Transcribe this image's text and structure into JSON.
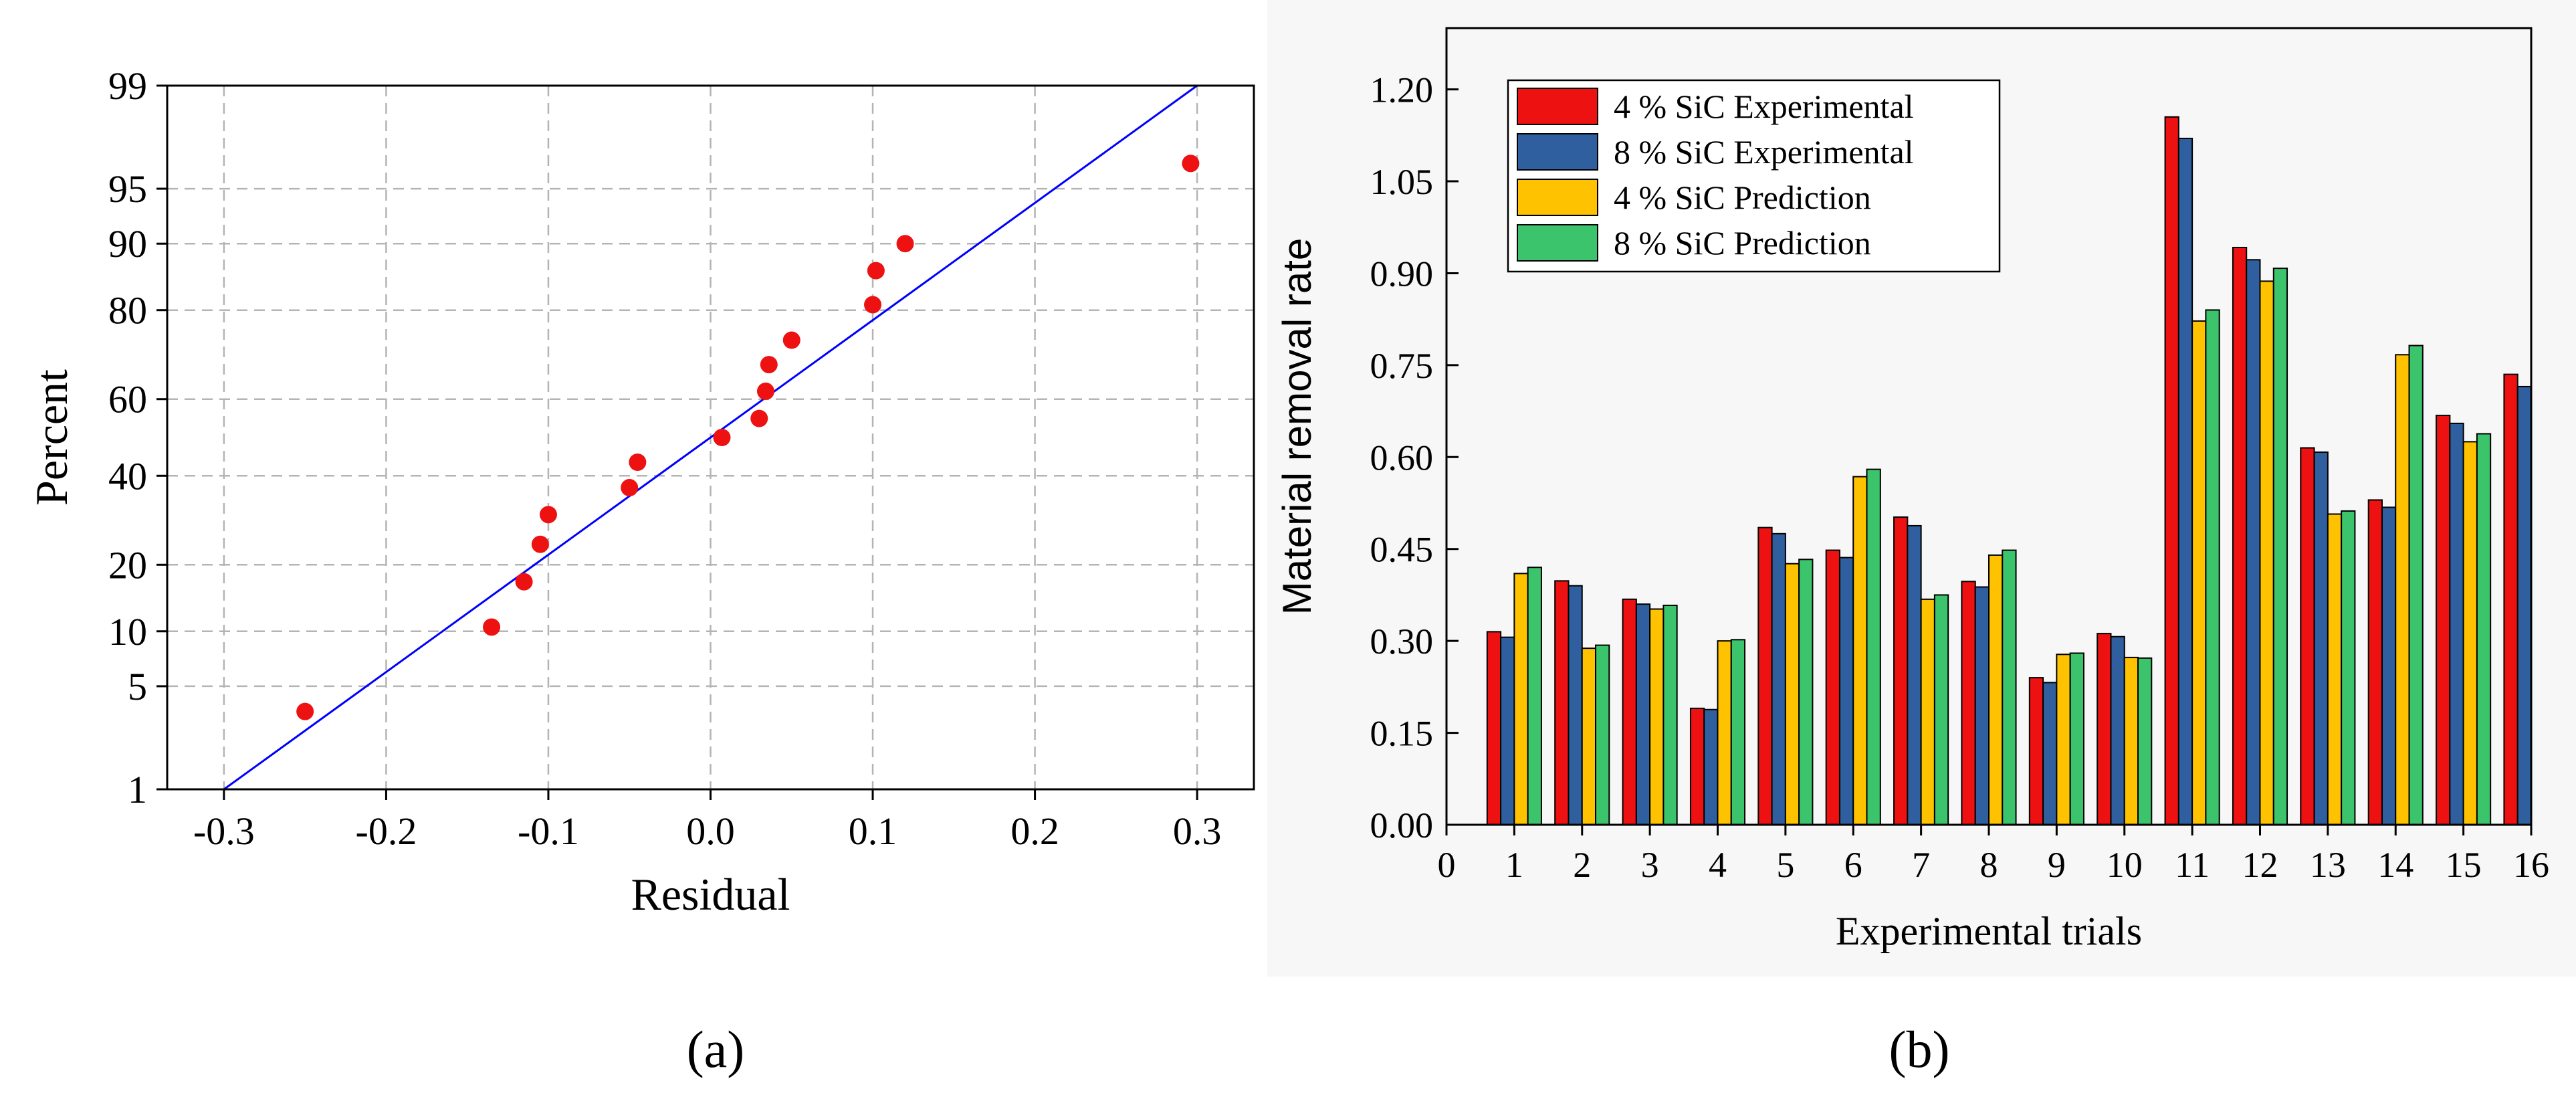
{
  "chart_data": [
    {
      "panel_label": "(a)",
      "type": "scatter",
      "title": "",
      "xlabel": "Residual",
      "ylabel": "Percent",
      "xlim": [
        -0.335,
        0.335
      ],
      "x_ticks": [
        -0.3,
        -0.2,
        -0.1,
        0.0,
        0.1,
        0.2,
        0.3
      ],
      "x_tick_labels": [
        "-0.3",
        "-0.2",
        "-0.1",
        "0.0",
        "0.1",
        "0.2",
        "0.3"
      ],
      "y_scale": "normal-probability",
      "ylim": [
        1,
        99
      ],
      "y_ticks": [
        1,
        5,
        10,
        20,
        40,
        60,
        80,
        90,
        95,
        99
      ],
      "y_tick_labels": [
        "1",
        "5",
        "10",
        "20",
        "40",
        "60",
        "80",
        "90",
        "95",
        "99"
      ],
      "grid": true,
      "fit_line": {
        "x": [
          -0.3,
          0.3
        ],
        "y": [
          1,
          99
        ],
        "color": "#0000ff"
      },
      "point_color": "#ee1111",
      "points": [
        {
          "x": -0.25,
          "y": 3.5
        },
        {
          "x": -0.135,
          "y": 10.5
        },
        {
          "x": -0.115,
          "y": 17
        },
        {
          "x": -0.105,
          "y": 24
        },
        {
          "x": -0.1,
          "y": 30.5
        },
        {
          "x": -0.05,
          "y": 37
        },
        {
          "x": -0.045,
          "y": 43.5
        },
        {
          "x": 0.007,
          "y": 50
        },
        {
          "x": 0.03,
          "y": 55
        },
        {
          "x": 0.034,
          "y": 62
        },
        {
          "x": 0.036,
          "y": 68.5
        },
        {
          "x": 0.05,
          "y": 74
        },
        {
          "x": 0.1,
          "y": 81
        },
        {
          "x": 0.102,
          "y": 86.5
        },
        {
          "x": 0.12,
          "y": 90
        },
        {
          "x": 0.296,
          "y": 96.5
        }
      ]
    },
    {
      "panel_label": "(b)",
      "type": "bar",
      "title": "",
      "xlabel": "Experimental trials",
      "ylabel": "Material removal rate",
      "ylim": [
        0,
        1.3
      ],
      "y_ticks": [
        0,
        0.15,
        0.3,
        0.45,
        0.6,
        0.75,
        0.9,
        1.05,
        1.2
      ],
      "y_tick_labels": [
        "0.00",
        "0.15",
        "0.30",
        "0.45",
        "0.60",
        "0.75",
        "0.90",
        "1.05",
        "1.20"
      ],
      "x_ticks": [
        0,
        1,
        2,
        3,
        4,
        5,
        6,
        7,
        8,
        9,
        10,
        11,
        12,
        13,
        14,
        15,
        16
      ],
      "x_tick_labels": [
        "0",
        "1",
        "2",
        "3",
        "4",
        "5",
        "6",
        "7",
        "8",
        "9",
        "10",
        "11",
        "12",
        "13",
        "14",
        "15",
        "16"
      ],
      "categories": [
        "1",
        "2",
        "3",
        "4",
        "5",
        "6",
        "7",
        "8",
        "9",
        "10",
        "11",
        "12",
        "13",
        "14",
        "15",
        "16"
      ],
      "legend_position": "top-left",
      "series": [
        {
          "name": "4 % SiC Experimental",
          "color": "#ee1111",
          "values": [
            0.315,
            0.398,
            0.368,
            0.19,
            0.485,
            0.448,
            0.502,
            0.397,
            0.24,
            0.312,
            1.155,
            0.942,
            0.615,
            0.53,
            0.668,
            0.735
          ]
        },
        {
          "name": "8 % SiC Experimental",
          "color": "#2f5f9e",
          "values": [
            0.306,
            0.39,
            0.36,
            0.188,
            0.475,
            0.436,
            0.488,
            0.388,
            0.232,
            0.307,
            1.12,
            0.922,
            0.608,
            0.518,
            0.655,
            0.715
          ]
        },
        {
          "name": "4 % SiC Prediction",
          "color": "#ffc200",
          "values": [
            0.41,
            0.288,
            0.352,
            0.3,
            0.426,
            0.568,
            0.368,
            0.44,
            0.278,
            0.273,
            0.822,
            0.887,
            0.507,
            0.767,
            0.625,
            null
          ]
        },
        {
          "name": "8 % SiC Prediction",
          "color": "#3cc46c",
          "values": [
            0.42,
            0.293,
            0.358,
            0.302,
            0.433,
            0.58,
            0.375,
            0.448,
            0.28,
            0.272,
            0.84,
            0.908,
            0.512,
            0.782,
            0.638,
            null
          ]
        }
      ]
    }
  ]
}
